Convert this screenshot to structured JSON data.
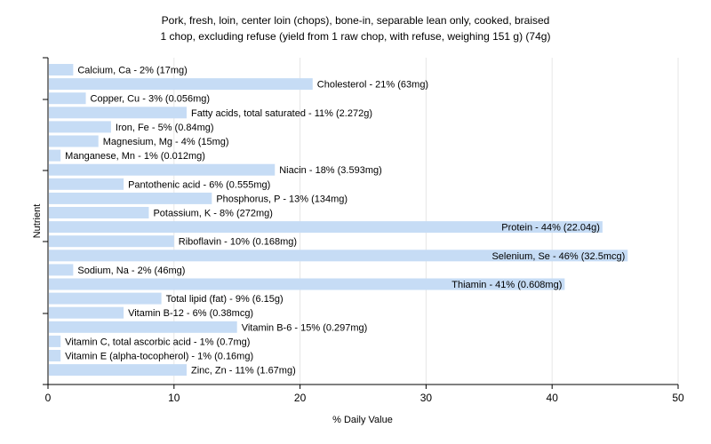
{
  "chart_data": {
    "type": "bar",
    "orientation": "horizontal",
    "title": "Pork, fresh, loin, center loin (chops), bone-in, separable lean only, cooked, braised",
    "subtitle": "1 chop, excluding refuse (yield from 1 raw chop, with refuse, weighing 151 g) (74g)",
    "xlabel": "% Daily Value",
    "ylabel": "Nutrient",
    "xlim": [
      0,
      50
    ],
    "xticks": [
      0,
      10,
      20,
      30,
      40,
      50
    ],
    "grid": true,
    "bar_color": "#c6dcf5",
    "categories": [
      "Calcium, Ca",
      "Cholesterol",
      "Copper, Cu",
      "Fatty acids, total saturated",
      "Iron, Fe",
      "Magnesium, Mg",
      "Manganese, Mn",
      "Niacin",
      "Pantothenic acid",
      "Phosphorus, P",
      "Potassium, K",
      "Protein",
      "Riboflavin",
      "Selenium, Se",
      "Sodium, Na",
      "Thiamin",
      "Total lipid (fat)",
      "Vitamin B-12",
      "Vitamin B-6",
      "Vitamin C, total ascorbic acid",
      "Vitamin E (alpha-tocopherol)",
      "Zinc, Zn"
    ],
    "values": [
      2,
      21,
      3,
      11,
      5,
      4,
      1,
      18,
      6,
      13,
      8,
      44,
      10,
      46,
      2,
      41,
      9,
      6,
      15,
      1,
      1,
      11
    ],
    "labels": [
      "Calcium, Ca - 2% (17mg)",
      "Cholesterol - 21% (63mg)",
      "Copper, Cu - 3% (0.056mg)",
      "Fatty acids, total saturated - 11% (2.272g)",
      "Iron, Fe - 5% (0.84mg)",
      "Magnesium, Mg - 4% (15mg)",
      "Manganese, Mn - 1% (0.012mg)",
      "Niacin - 18% (3.593mg)",
      "Pantothenic acid - 6% (0.555mg)",
      "Phosphorus, P - 13% (134mg)",
      "Potassium, K - 8% (272mg)",
      "Protein - 44% (22.04g)",
      "Riboflavin - 10% (0.168mg)",
      "Selenium, Se - 46% (32.5mcg)",
      "Sodium, Na - 2% (46mg)",
      "Thiamin - 41% (0.608mg)",
      "Total lipid (fat) - 9% (6.15g)",
      "Vitamin B-12 - 6% (0.38mcg)",
      "Vitamin B-6 - 15% (0.297mg)",
      "Vitamin C, total ascorbic acid - 1% (0.7mg)",
      "Vitamin E (alpha-tocopherol) - 1% (0.16mg)",
      "Zinc, Zn - 11% (1.67mg)"
    ]
  }
}
